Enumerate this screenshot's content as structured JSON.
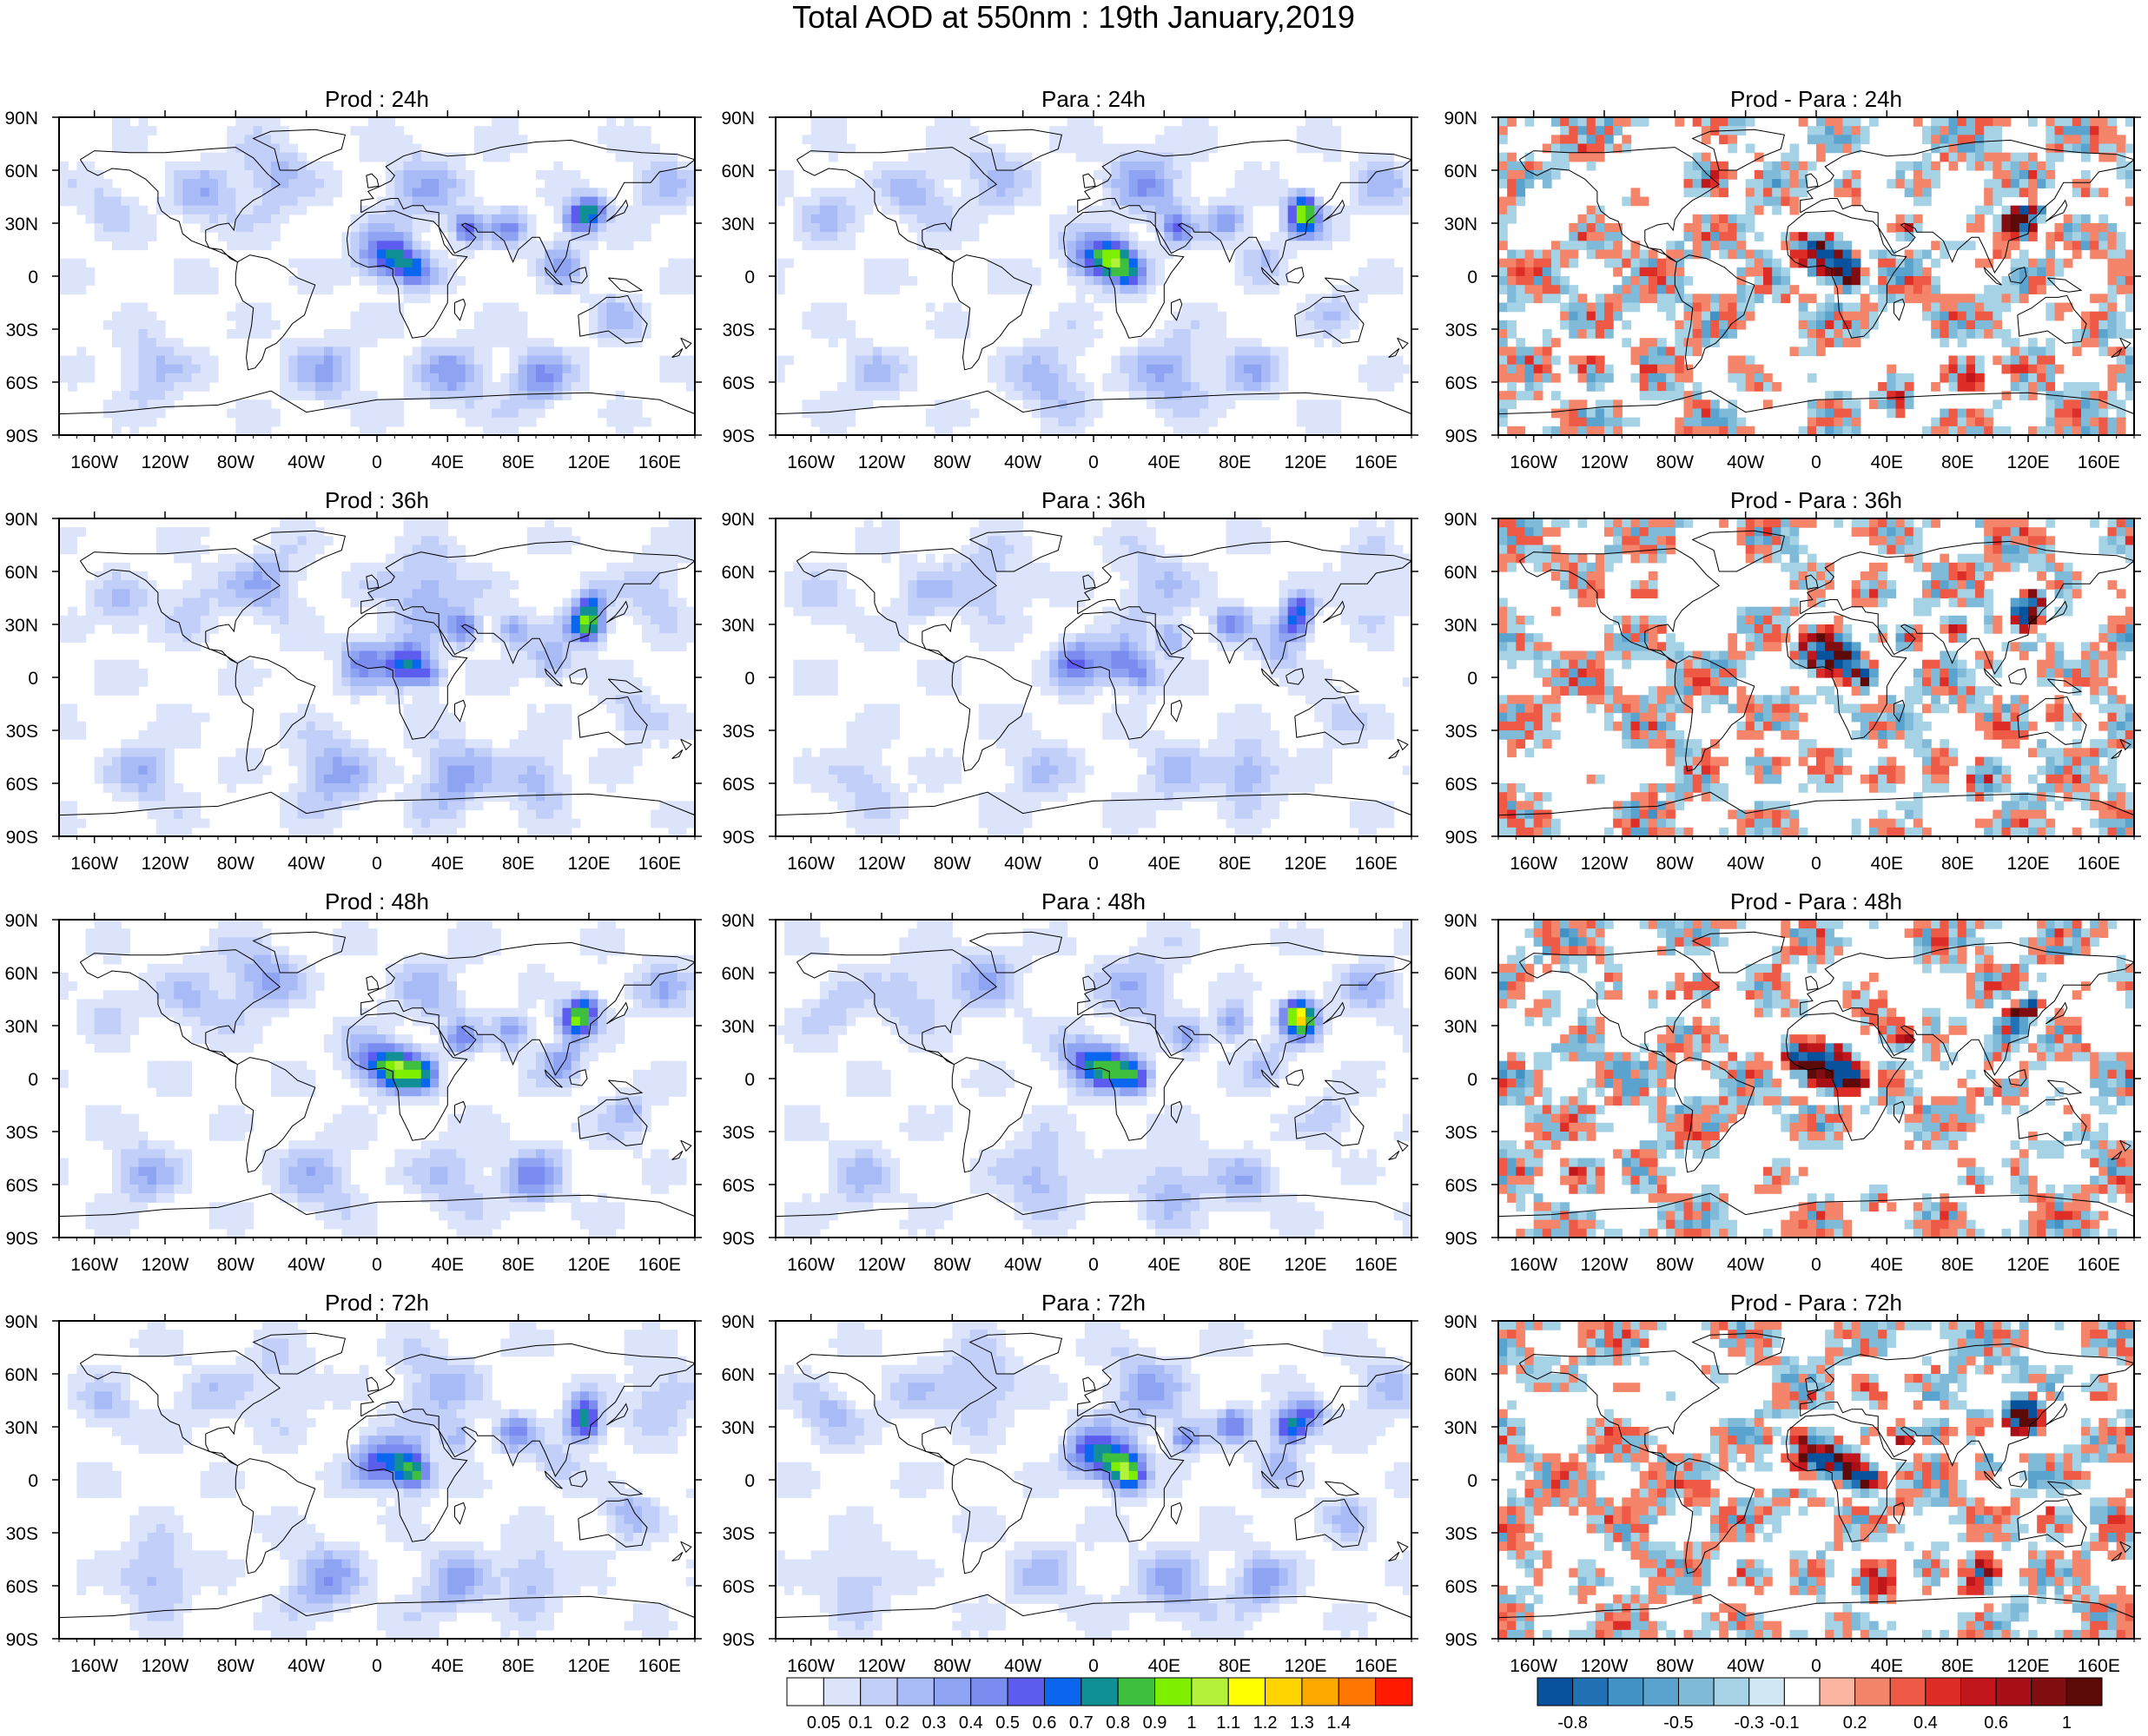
{
  "title": "Total AOD at 550nm : 19th January,2019",
  "panels": [
    {
      "title": "Prod : 24h",
      "kind": "aod",
      "seed": 11
    },
    {
      "title": "Para : 24h",
      "kind": "aod",
      "seed": 12
    },
    {
      "title": "Prod - Para : 24h",
      "kind": "diff",
      "seed": 13
    },
    {
      "title": "Prod : 36h",
      "kind": "aod",
      "seed": 21
    },
    {
      "title": "Para : 36h",
      "kind": "aod",
      "seed": 22
    },
    {
      "title": "Prod - Para : 36h",
      "kind": "diff",
      "seed": 23
    },
    {
      "title": "Prod : 48h",
      "kind": "aod",
      "seed": 31
    },
    {
      "title": "Para : 48h",
      "kind": "aod",
      "seed": 32
    },
    {
      "title": "Prod - Para : 48h",
      "kind": "diff",
      "seed": 33
    },
    {
      "title": "Prod : 72h",
      "kind": "aod",
      "seed": 41
    },
    {
      "title": "Para : 72h",
      "kind": "aod",
      "seed": 42
    },
    {
      "title": "Prod - Para : 72h",
      "kind": "diff",
      "seed": 43
    }
  ],
  "lat_labels": [
    "90N",
    "60N",
    "30N",
    "0",
    "30S",
    "60S",
    "90S"
  ],
  "lon_labels": [
    "160W",
    "120W",
    "80W",
    "40W",
    "0",
    "40E",
    "80E",
    "120E",
    "160E"
  ],
  "aod_colorbar": {
    "labels": [
      "0.05",
      "0.1",
      "0.2",
      "0.3",
      "0.4",
      "0.5",
      "0.6",
      "0.7",
      "0.8",
      "0.9",
      "1",
      "1.1",
      "1.2",
      "1.3",
      "1.4"
    ],
    "colors": [
      "#ffffff",
      "#dce4fb",
      "#c2cff8",
      "#a9bbf6",
      "#8ea3f2",
      "#7a8cf0",
      "#5c5cee",
      "#0a66ee",
      "#108f96",
      "#3fbf3f",
      "#7fef00",
      "#b3f23a",
      "#ffff00",
      "#ffd400",
      "#ffa800",
      "#ff7700",
      "#ff1a00"
    ]
  },
  "diff_colorbar": {
    "labels": [
      "-0.8",
      "-0.5",
      "-0.3",
      "-0.1",
      "0.2",
      "0.4",
      "0.6",
      "1"
    ],
    "colors": [
      "#08519c",
      "#2171b5",
      "#4292c6",
      "#5ba3cf",
      "#7fbad9",
      "#a6d2e6",
      "#cfe8f3",
      "#ffffff",
      "#fbb4a0",
      "#f4846a",
      "#ee5a45",
      "#de2d26",
      "#c0161c",
      "#a50f15",
      "#800d10",
      "#5c0a08"
    ]
  }
}
